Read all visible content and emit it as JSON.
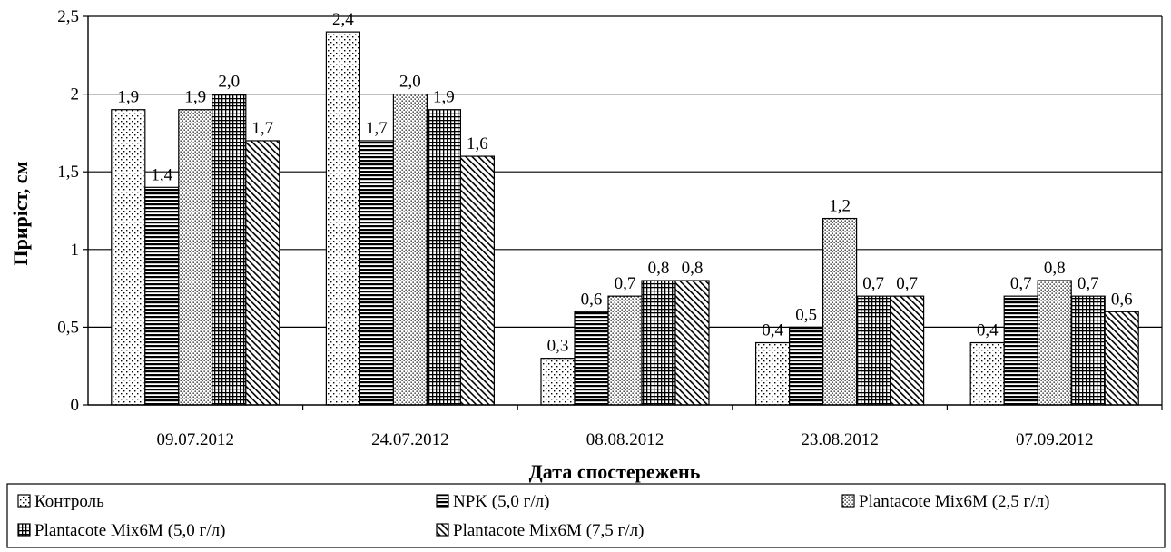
{
  "chart_data": {
    "type": "bar",
    "title": "",
    "xlabel": "Дата спостережень",
    "ylabel": "Приріст, см",
    "ylim": [
      0,
      2.5
    ],
    "yticks": [
      "0",
      "0,5",
      "1",
      "1,5",
      "2",
      "2,5"
    ],
    "ytick_values": [
      0,
      0.5,
      1,
      1.5,
      2,
      2.5
    ],
    "grid": true,
    "legend_position": "bottom",
    "categories": [
      "09.07.2012",
      "24.07.2012",
      "08.08.2012",
      "23.08.2012",
      "07.09.2012"
    ],
    "series": [
      {
        "name": "Контроль",
        "pattern": "dots-sparse",
        "values": [
          1.9,
          2.4,
          0.3,
          0.4,
          0.4
        ],
        "labels": [
          "1,9",
          "2,4",
          "0,3",
          "0,4",
          "0,4"
        ]
      },
      {
        "name": "NPK (5,0 г/л)",
        "pattern": "hstripes",
        "values": [
          1.4,
          1.7,
          0.6,
          0.5,
          0.7
        ],
        "labels": [
          "1,4",
          "1,7",
          "0,6",
          "0,5",
          "0,7"
        ]
      },
      {
        "name": "Plantacote Mix6M (2,5 г/л)",
        "pattern": "dots-dense",
        "values": [
          1.9,
          2.0,
          0.7,
          1.2,
          0.8
        ],
        "labels": [
          "1,9",
          "2,0",
          "0,7",
          "1,2",
          "0,8"
        ]
      },
      {
        "name": "Plantacote Mix6M (5,0 г/л)",
        "pattern": "grid",
        "values": [
          2.0,
          1.9,
          0.8,
          0.7,
          0.7
        ],
        "labels": [
          "2,0",
          "1,9",
          "0,8",
          "0,7",
          "0,7"
        ]
      },
      {
        "name": "Plantacote Mix6M (7,5 г/л)",
        "pattern": "diagonal",
        "values": [
          1.7,
          1.6,
          0.8,
          0.7,
          0.6
        ],
        "labels": [
          "1,7",
          "1,6",
          "0,8",
          "0,7",
          "0,6"
        ]
      }
    ]
  }
}
